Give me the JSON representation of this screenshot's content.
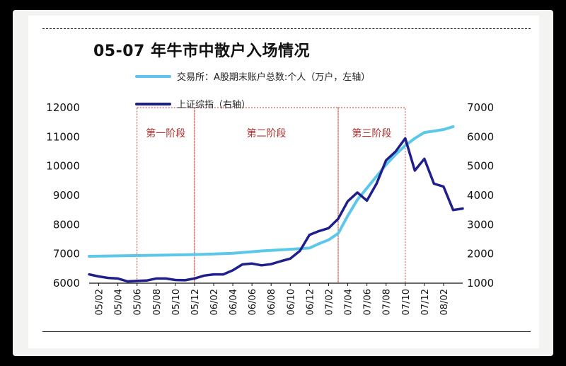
{
  "title": "05-07 年牛市中散户入场情况",
  "chart_data": {
    "type": "line",
    "title": "05-07 年牛市中散户入场情况",
    "x_ticks": [
      "05/02",
      "05/04",
      "05/06",
      "05/08",
      "05/10",
      "05/12",
      "06/02",
      "06/04",
      "06/06",
      "06/08",
      "06/10",
      "06/12",
      "07/02",
      "07/04",
      "07/06",
      "07/08",
      "07/10",
      "07/12",
      "08/02"
    ],
    "y_left": {
      "range": [
        6000,
        12000
      ],
      "ticks": [
        6000,
        7000,
        8000,
        9000,
        10000,
        11000,
        12000
      ]
    },
    "y_right": {
      "range": [
        1000,
        7000
      ],
      "ticks": [
        1000,
        2000,
        3000,
        4000,
        5000,
        6000,
        7000
      ]
    },
    "series": [
      {
        "name": "交易所：A股期末账户总数:个人（万户，左轴）",
        "axis": "left",
        "color": "#5bc8ea",
        "points": [
          [
            "2005-01",
            6920
          ],
          [
            "2005-04",
            6935
          ],
          [
            "2005-07",
            6950
          ],
          [
            "2005-10",
            6965
          ],
          [
            "2006-01",
            6985
          ],
          [
            "2006-04",
            7020
          ],
          [
            "2006-07",
            7100
          ],
          [
            "2006-10",
            7160
          ],
          [
            "2006-12",
            7200
          ],
          [
            "2007-01",
            7350
          ],
          [
            "2007-02",
            7480
          ],
          [
            "2007-03",
            7700
          ],
          [
            "2007-04",
            8300
          ],
          [
            "2007-05",
            8850
          ],
          [
            "2007-06",
            9250
          ],
          [
            "2007-07",
            9650
          ],
          [
            "2007-08",
            10050
          ],
          [
            "2007-09",
            10400
          ],
          [
            "2007-10",
            10700
          ],
          [
            "2007-11",
            10950
          ],
          [
            "2007-12",
            11150
          ],
          [
            "2008-01",
            11200
          ],
          [
            "2008-02",
            11250
          ],
          [
            "2008-03",
            11350
          ]
        ]
      },
      {
        "name": "上证综指（右轴）",
        "axis": "right",
        "color": "#1e1e8c",
        "points": [
          [
            "2005-01",
            1300
          ],
          [
            "2005-02",
            1230
          ],
          [
            "2005-03",
            1180
          ],
          [
            "2005-04",
            1160
          ],
          [
            "2005-05",
            1060
          ],
          [
            "2005-06",
            1080
          ],
          [
            "2005-07",
            1090
          ],
          [
            "2005-08",
            1160
          ],
          [
            "2005-09",
            1160
          ],
          [
            "2005-10",
            1110
          ],
          [
            "2005-11",
            1100
          ],
          [
            "2005-12",
            1160
          ],
          [
            "2006-01",
            1260
          ],
          [
            "2006-02",
            1300
          ],
          [
            "2006-03",
            1300
          ],
          [
            "2006-04",
            1440
          ],
          [
            "2006-05",
            1640
          ],
          [
            "2006-06",
            1670
          ],
          [
            "2006-07",
            1610
          ],
          [
            "2006-08",
            1650
          ],
          [
            "2006-09",
            1750
          ],
          [
            "2006-10",
            1840
          ],
          [
            "2006-11",
            2100
          ],
          [
            "2006-12",
            2650
          ],
          [
            "2007-01",
            2780
          ],
          [
            "2007-02",
            2880
          ],
          [
            "2007-03",
            3200
          ],
          [
            "2007-04",
            3800
          ],
          [
            "2007-05",
            4100
          ],
          [
            "2007-06",
            3820
          ],
          [
            "2007-07",
            4400
          ],
          [
            "2007-08",
            5200
          ],
          [
            "2007-09",
            5500
          ],
          [
            "2007-10",
            5950
          ],
          [
            "2007-11",
            4850
          ],
          [
            "2007-12",
            5250
          ],
          [
            "2008-01",
            4400
          ],
          [
            "2008-02",
            4300
          ],
          [
            "2008-03",
            3500
          ],
          [
            "2008-04",
            3550
          ]
        ]
      }
    ],
    "stages": [
      {
        "label": "第一阶段",
        "start": "2005-06",
        "end": "2005-12"
      },
      {
        "label": "第二阶段",
        "start": "2005-12",
        "end": "2007-03"
      },
      {
        "label": "第三阶段",
        "start": "2007-03",
        "end": "2007-10"
      }
    ],
    "legend_position": "top-left",
    "grid": false
  },
  "colors": {
    "accent_light": "#5bc8ea",
    "accent_dark": "#1e1e8c",
    "stage_border": "#c0392b"
  }
}
